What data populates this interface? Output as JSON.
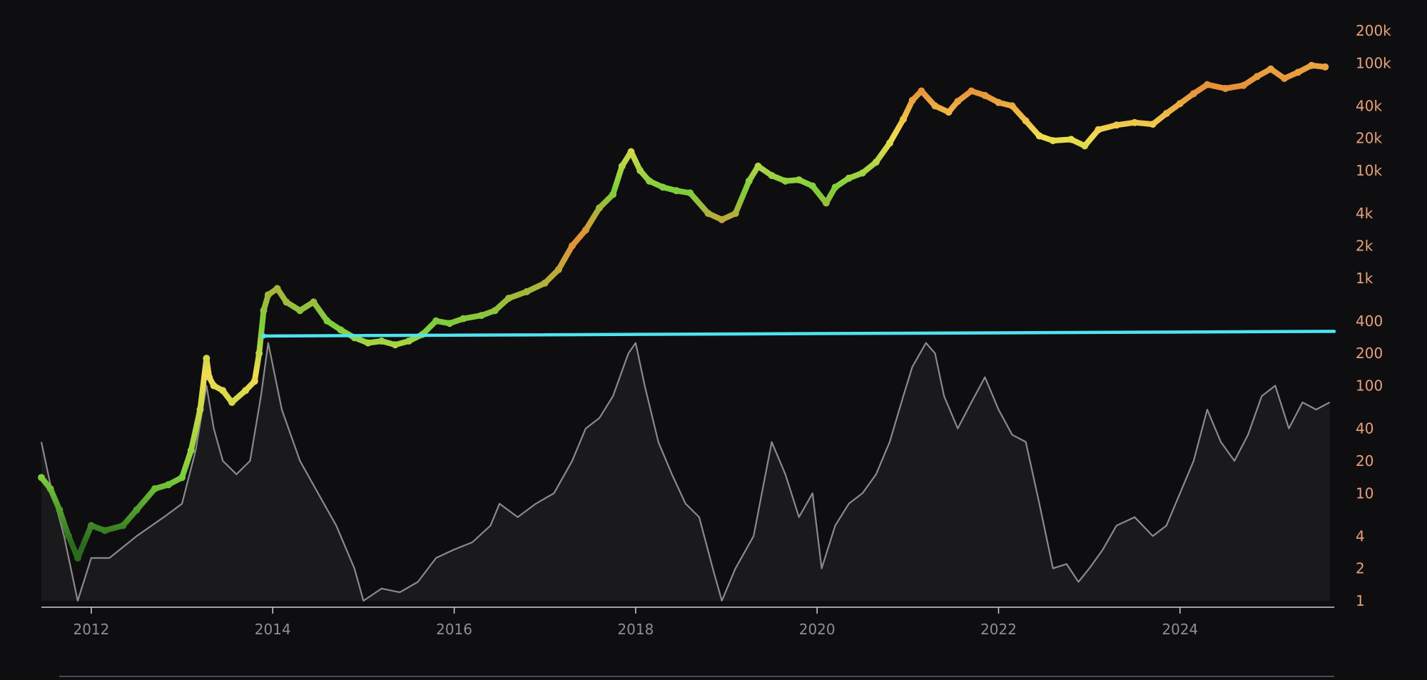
{
  "chart_data": {
    "type": "scatter",
    "title": "",
    "xlabel": "",
    "ylabel": "",
    "scale": "log",
    "xlim": [
      2011.45,
      2025.7
    ],
    "ylim": [
      1,
      200000
    ],
    "grid": false,
    "x_ticks": [
      "2012",
      "2014",
      "2016",
      "2018",
      "2020",
      "2022",
      "2024"
    ],
    "x_tick_values": [
      2012,
      2014,
      2016,
      2018,
      2020,
      2022,
      2024
    ],
    "y_ticks": [
      "200k",
      "100k",
      "40k",
      "20k",
      "10k",
      "4k",
      "2k",
      "1k",
      "400",
      "200",
      "100",
      "40",
      "20",
      "10",
      "4",
      "2",
      "1"
    ],
    "y_tick_values": [
      200000,
      100000,
      40000,
      20000,
      10000,
      4000,
      2000,
      1000,
      400,
      200,
      100,
      40,
      20,
      10,
      4,
      2,
      1
    ],
    "colors": {
      "background": "#0e0e10",
      "price_low": "#2a6b1e",
      "price_mid": "#7ccf3c",
      "price_high": "#f2dc50",
      "price_peak": "#c9652a",
      "horizontal_line": "#4fe3f0",
      "secondary_line": "#8a8a8a",
      "secondary_fill": "#1a1a1d",
      "axis": "#cfcfcf",
      "y_tick_text": "#e8a07a",
      "x_tick_text": "#8f8f8f"
    },
    "series": [
      {
        "role": "price",
        "color_scale": "heat (green = low, yellow = mid, orange = peak)",
        "x": [
          2011.45,
          2011.55,
          2011.65,
          2011.75,
          2011.85,
          2012.0,
          2012.15,
          2012.35,
          2012.5,
          2012.7,
          2012.85,
          2013.0,
          2013.1,
          2013.2,
          2013.27,
          2013.3,
          2013.35,
          2013.45,
          2013.55,
          2013.7,
          2013.8,
          2013.85,
          2013.9,
          2013.95,
          2014.05,
          2014.15,
          2014.3,
          2014.45,
          2014.6,
          2014.75,
          2014.9,
          2015.05,
          2015.2,
          2015.35,
          2015.5,
          2015.65,
          2015.8,
          2015.95,
          2016.1,
          2016.3,
          2016.45,
          2016.6,
          2016.8,
          2017.0,
          2017.15,
          2017.3,
          2017.45,
          2017.6,
          2017.75,
          2017.85,
          2017.95,
          2018.05,
          2018.15,
          2018.3,
          2018.45,
          2018.6,
          2018.8,
          2018.95,
          2019.1,
          2019.25,
          2019.35,
          2019.5,
          2019.65,
          2019.8,
          2019.95,
          2020.1,
          2020.2,
          2020.35,
          2020.5,
          2020.65,
          2020.8,
          2020.95,
          2021.05,
          2021.15,
          2021.3,
          2021.45,
          2021.55,
          2021.7,
          2021.85,
          2022.0,
          2022.15,
          2022.3,
          2022.45,
          2022.6,
          2022.8,
          2022.95,
          2023.1,
          2023.3,
          2023.5,
          2023.7,
          2023.85,
          2024.0,
          2024.15,
          2024.3,
          2024.5,
          2024.7,
          2024.85,
          2025.0,
          2025.15,
          2025.3,
          2025.45,
          2025.6
        ],
        "y": [
          14,
          11,
          7,
          4,
          2.5,
          5,
          4.5,
          5,
          7,
          11,
          12,
          14,
          25,
          60,
          180,
          120,
          100,
          90,
          70,
          90,
          110,
          200,
          500,
          700,
          800,
          600,
          500,
          600,
          400,
          330,
          280,
          250,
          260,
          240,
          260,
          300,
          400,
          380,
          420,
          450,
          500,
          650,
          750,
          900,
          1200,
          2000,
          2800,
          4500,
          6000,
          11000,
          15000,
          10000,
          8000,
          7000,
          6500,
          6200,
          4000,
          3500,
          4000,
          8000,
          11000,
          9000,
          8000,
          8200,
          7200,
          5000,
          7000,
          8500,
          9500,
          12000,
          18000,
          30000,
          45000,
          55000,
          40000,
          35000,
          44000,
          55000,
          50000,
          43000,
          40000,
          29000,
          21000,
          19000,
          19500,
          17000,
          24000,
          26500,
          28000,
          27000,
          34000,
          42000,
          52000,
          63000,
          58000,
          62000,
          75000,
          88000,
          72000,
          82000,
          95000,
          92000
        ]
      },
      {
        "role": "secondary",
        "x": [
          2011.45,
          2011.55,
          2011.7,
          2011.85,
          2012.0,
          2012.2,
          2012.5,
          2012.8,
          2013.0,
          2013.15,
          2013.27,
          2013.35,
          2013.45,
          2013.6,
          2013.75,
          2013.87,
          2013.95,
          2014.1,
          2014.3,
          2014.5,
          2014.7,
          2014.9,
          2015.0,
          2015.2,
          2015.4,
          2015.6,
          2015.8,
          2016.0,
          2016.2,
          2016.4,
          2016.5,
          2016.7,
          2016.9,
          2017.1,
          2017.3,
          2017.45,
          2017.6,
          2017.75,
          2017.92,
          2018.0,
          2018.1,
          2018.25,
          2018.4,
          2018.55,
          2018.7,
          2018.85,
          2018.95,
          2019.1,
          2019.3,
          2019.5,
          2019.65,
          2019.8,
          2019.95,
          2020.05,
          2020.2,
          2020.35,
          2020.5,
          2020.65,
          2020.8,
          2020.95,
          2021.05,
          2021.2,
          2021.3,
          2021.4,
          2021.55,
          2021.7,
          2021.85,
          2022.0,
          2022.15,
          2022.3,
          2022.45,
          2022.6,
          2022.75,
          2022.88,
          2023.0,
          2023.15,
          2023.3,
          2023.5,
          2023.7,
          2023.85,
          2024.0,
          2024.15,
          2024.3,
          2024.45,
          2024.6,
          2024.75,
          2024.9,
          2025.05,
          2025.2,
          2025.35,
          2025.5,
          2025.65
        ],
        "y": [
          30,
          12,
          4,
          1,
          2.5,
          2.5,
          4,
          6,
          8,
          25,
          100,
          40,
          20,
          15,
          20,
          80,
          250,
          60,
          20,
          10,
          5,
          2,
          1,
          1.3,
          1.2,
          1.5,
          2.5,
          3,
          3.5,
          5,
          8,
          6,
          8,
          10,
          20,
          40,
          50,
          80,
          200,
          250,
          100,
          30,
          15,
          8,
          6,
          2,
          1,
          2,
          4,
          30,
          15,
          6,
          10,
          2,
          5,
          8,
          10,
          15,
          30,
          80,
          150,
          250,
          200,
          80,
          40,
          70,
          120,
          60,
          35,
          30,
          8,
          2,
          2.2,
          1.5,
          2,
          3,
          5,
          6,
          4,
          5,
          10,
          20,
          60,
          30,
          20,
          35,
          80,
          100,
          40,
          70,
          60,
          70
        ]
      },
      {
        "role": "horizontal_line",
        "x": [
          2013.9,
          2025.7
        ],
        "y": [
          290,
          320
        ]
      }
    ]
  }
}
